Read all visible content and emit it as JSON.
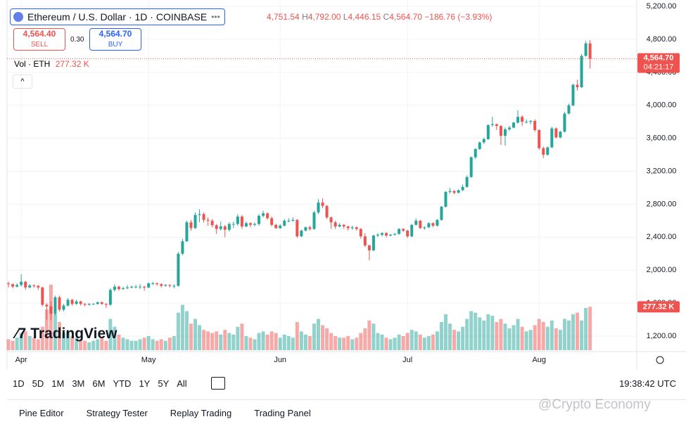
{
  "ui": {
    "symbol": "Ethereum / U.S. Dollar · 1D · COINBASE",
    "ohlc": {
      "open": "4,751.54",
      "high_label": "H",
      "high": "4,792.00",
      "low_label": "L",
      "low": "4,446.15",
      "close_label": "C",
      "close": "4,564.70",
      "change": "−186.76 (−3.93%)"
    },
    "sell_price": "4,564.40",
    "sell": "SELL",
    "spread": "0.30",
    "buy_price": "4,564.70",
    "buy": "BUY",
    "watermark": "TradingView",
    "ranges": [
      "1D",
      "5D",
      "1M",
      "3M",
      "6M",
      "YTD",
      "1Y",
      "5Y",
      "All"
    ],
    "clock": "19:38:42 UTC",
    "tabs": [
      "Pine Editor",
      "Strategy Tester",
      "Replay Trading",
      "Trading Panel"
    ],
    "credit": "@Crypto Economy"
  },
  "chart_data": {
    "type": "candlestick",
    "up_color": "#26a69a",
    "down_color": "#ef5350",
    "grid": true,
    "ylim": [
      1012,
      5278
    ],
    "yticks": [
      {
        "value": 1200,
        "label": "1,200.00"
      },
      {
        "value": 1600,
        "label": "1,600.00"
      },
      {
        "value": 2000,
        "label": "2,000.00"
      },
      {
        "value": 2400,
        "label": "2,400.00"
      },
      {
        "value": 2800,
        "label": "2,800.00"
      },
      {
        "value": 3200,
        "label": "3,200.00"
      },
      {
        "value": 3600,
        "label": "3,600.00"
      },
      {
        "value": 4000,
        "label": "4,000.00"
      },
      {
        "value": 4400,
        "label": "4,400.00"
      },
      {
        "value": 4800,
        "label": "4,800.00"
      },
      {
        "value": 5200,
        "label": "5,200.00"
      }
    ],
    "xlim": [
      -2,
      148
    ],
    "xticks": [
      {
        "value": 3,
        "label": "Apr"
      },
      {
        "value": 33,
        "label": "May"
      },
      {
        "value": 64,
        "label": "Jun"
      },
      {
        "value": 94,
        "label": "Jul"
      },
      {
        "value": 125,
        "label": "Aug"
      }
    ],
    "last_price_label": "4,564.70",
    "countdown": "04:21:17",
    "volume_name": "Vol · ETH",
    "volume_last_label": "277.32 K",
    "volume_ylim": [
      0,
      450
    ],
    "candles": [
      [
        1840,
        1860,
        1790,
        1830
      ],
      [
        1830,
        1840,
        1780,
        1800
      ],
      [
        1800,
        1840,
        1790,
        1820
      ],
      [
        1820,
        1950,
        1800,
        1860
      ],
      [
        1860,
        1870,
        1760,
        1790
      ],
      [
        1790,
        1830,
        1780,
        1815
      ],
      [
        1815,
        1830,
        1790,
        1810
      ],
      [
        1810,
        1820,
        1760,
        1790
      ],
      [
        1790,
        1800,
        1560,
        1580
      ],
      [
        1580,
        1600,
        1400,
        1560
      ],
      [
        1560,
        1620,
        1390,
        1470
      ],
      [
        1470,
        1690,
        1450,
        1670
      ],
      [
        1670,
        1690,
        1500,
        1520
      ],
      [
        1520,
        1590,
        1500,
        1570
      ],
      [
        1570,
        1660,
        1560,
        1640
      ],
      [
        1640,
        1650,
        1570,
        1590
      ],
      [
        1590,
        1640,
        1580,
        1620
      ],
      [
        1620,
        1630,
        1570,
        1590
      ],
      [
        1590,
        1600,
        1560,
        1580
      ],
      [
        1580,
        1600,
        1570,
        1590
      ],
      [
        1590,
        1600,
        1580,
        1590
      ],
      [
        1590,
        1620,
        1580,
        1610
      ],
      [
        1610,
        1620,
        1580,
        1590
      ],
      [
        1590,
        1600,
        1540,
        1580
      ],
      [
        1580,
        1780,
        1570,
        1760
      ],
      [
        1760,
        1830,
        1740,
        1800
      ],
      [
        1800,
        1810,
        1750,
        1770
      ],
      [
        1770,
        1800,
        1760,
        1780
      ],
      [
        1780,
        1820,
        1770,
        1790
      ],
      [
        1790,
        1810,
        1780,
        1800
      ],
      [
        1800,
        1820,
        1780,
        1800
      ],
      [
        1800,
        1830,
        1770,
        1800
      ],
      [
        1800,
        1810,
        1750,
        1790
      ],
      [
        1790,
        1850,
        1780,
        1840
      ],
      [
        1840,
        1860,
        1820,
        1840
      ],
      [
        1840,
        1850,
        1810,
        1830
      ],
      [
        1830,
        1840,
        1790,
        1810
      ],
      [
        1810,
        1830,
        1800,
        1820
      ],
      [
        1820,
        1830,
        1790,
        1810
      ],
      [
        1810,
        1830,
        1780,
        1810
      ],
      [
        1810,
        2220,
        1800,
        2200
      ],
      [
        2200,
        2380,
        2180,
        2350
      ],
      [
        2350,
        2600,
        2340,
        2580
      ],
      [
        2580,
        2610,
        2480,
        2510
      ],
      [
        2510,
        2700,
        2500,
        2670
      ],
      [
        2670,
        2740,
        2580,
        2680
      ],
      [
        2680,
        2700,
        2580,
        2610
      ],
      [
        2610,
        2640,
        2540,
        2600
      ],
      [
        2600,
        2620,
        2520,
        2545
      ],
      [
        2545,
        2560,
        2440,
        2500
      ],
      [
        2500,
        2590,
        2480,
        2530
      ],
      [
        2530,
        2550,
        2400,
        2490
      ],
      [
        2490,
        2580,
        2470,
        2560
      ],
      [
        2560,
        2590,
        2510,
        2560
      ],
      [
        2560,
        2680,
        2540,
        2650
      ],
      [
        2650,
        2670,
        2500,
        2530
      ],
      [
        2530,
        2590,
        2520,
        2570
      ],
      [
        2570,
        2580,
        2520,
        2550
      ],
      [
        2550,
        2580,
        2530,
        2560
      ],
      [
        2560,
        2680,
        2540,
        2660
      ],
      [
        2660,
        2720,
        2640,
        2690
      ],
      [
        2690,
        2700,
        2610,
        2630
      ],
      [
        2630,
        2650,
        2530,
        2550
      ],
      [
        2550,
        2560,
        2500,
        2510
      ],
      [
        2510,
        2560,
        2500,
        2540
      ],
      [
        2540,
        2620,
        2530,
        2600
      ],
      [
        2600,
        2630,
        2580,
        2600
      ],
      [
        2600,
        2640,
        2590,
        2610
      ],
      [
        2610,
        2620,
        2390,
        2410
      ],
      [
        2410,
        2490,
        2400,
        2480
      ],
      [
        2480,
        2530,
        2470,
        2520
      ],
      [
        2520,
        2540,
        2480,
        2500
      ],
      [
        2500,
        2720,
        2490,
        2700
      ],
      [
        2700,
        2860,
        2680,
        2820
      ],
      [
        2820,
        2870,
        2750,
        2780
      ],
      [
        2780,
        2790,
        2620,
        2640
      ],
      [
        2640,
        2650,
        2500,
        2580
      ],
      [
        2580,
        2600,
        2500,
        2530
      ],
      [
        2530,
        2570,
        2520,
        2550
      ],
      [
        2550,
        2560,
        2500,
        2530
      ],
      [
        2530,
        2540,
        2480,
        2510
      ],
      [
        2510,
        2540,
        2490,
        2520
      ],
      [
        2520,
        2530,
        2480,
        2500
      ],
      [
        2500,
        2510,
        2380,
        2410
      ],
      [
        2410,
        2450,
        2280,
        2300
      ],
      [
        2300,
        2310,
        2120,
        2240
      ],
      [
        2240,
        2430,
        2230,
        2420
      ],
      [
        2420,
        2450,
        2400,
        2430
      ],
      [
        2430,
        2460,
        2410,
        2450
      ],
      [
        2450,
        2460,
        2400,
        2420
      ],
      [
        2420,
        2440,
        2410,
        2430
      ],
      [
        2430,
        2450,
        2420,
        2440
      ],
      [
        2440,
        2510,
        2430,
        2500
      ],
      [
        2500,
        2510,
        2460,
        2480
      ],
      [
        2480,
        2490,
        2390,
        2410
      ],
      [
        2410,
        2560,
        2400,
        2550
      ],
      [
        2550,
        2630,
        2540,
        2600
      ],
      [
        2600,
        2610,
        2500,
        2510
      ],
      [
        2510,
        2530,
        2490,
        2520
      ],
      [
        2520,
        2580,
        2510,
        2570
      ],
      [
        2570,
        2580,
        2520,
        2540
      ],
      [
        2540,
        2620,
        2530,
        2610
      ],
      [
        2610,
        2780,
        2600,
        2770
      ],
      [
        2770,
        2960,
        2760,
        2950
      ],
      [
        2950,
        3000,
        2930,
        2960
      ],
      [
        2960,
        2970,
        2920,
        2940
      ],
      [
        2940,
        2980,
        2930,
        2970
      ],
      [
        2970,
        3040,
        2960,
        3010
      ],
      [
        3010,
        3150,
        3000,
        3130
      ],
      [
        3130,
        3380,
        3120,
        3370
      ],
      [
        3370,
        3480,
        3350,
        3470
      ],
      [
        3470,
        3560,
        3460,
        3550
      ],
      [
        3550,
        3610,
        3530,
        3590
      ],
      [
        3590,
        3770,
        3580,
        3760
      ],
      [
        3760,
        3860,
        3740,
        3770
      ],
      [
        3770,
        3780,
        3700,
        3750
      ],
      [
        3750,
        3760,
        3520,
        3630
      ],
      [
        3630,
        3730,
        3510,
        3710
      ],
      [
        3710,
        3750,
        3690,
        3730
      ],
      [
        3730,
        3800,
        3720,
        3790
      ],
      [
        3790,
        3940,
        3780,
        3860
      ],
      [
        3860,
        3880,
        3750,
        3800
      ],
      [
        3800,
        3830,
        3780,
        3800
      ],
      [
        3800,
        3820,
        3770,
        3810
      ],
      [
        3810,
        3830,
        3680,
        3700
      ],
      [
        3700,
        3710,
        3460,
        3480
      ],
      [
        3480,
        3500,
        3360,
        3400
      ],
      [
        3400,
        3500,
        3390,
        3490
      ],
      [
        3490,
        3740,
        3480,
        3720
      ],
      [
        3720,
        3730,
        3600,
        3610
      ],
      [
        3610,
        3690,
        3600,
        3680
      ],
      [
        3680,
        3920,
        3670,
        3900
      ],
      [
        3900,
        4020,
        3890,
        4000
      ],
      [
        4000,
        4260,
        3990,
        4250
      ],
      [
        4250,
        4310,
        4180,
        4220
      ],
      [
        4220,
        4620,
        4210,
        4600
      ],
      [
        4600,
        4780,
        4590,
        4751.54
      ],
      [
        4751.54,
        4792,
        4446.15,
        4564.7
      ]
    ],
    "volume": [
      70,
      60,
      80,
      110,
      120,
      90,
      80,
      70,
      150,
      260,
      420,
      230,
      180,
      110,
      120,
      90,
      80,
      70,
      60,
      50,
      60,
      70,
      80,
      60,
      200,
      150,
      100,
      80,
      70,
      60,
      60,
      70,
      80,
      90,
      70,
      60,
      70,
      60,
      80,
      90,
      240,
      290,
      250,
      170,
      200,
      160,
      130,
      120,
      110,
      120,
      100,
      130,
      110,
      100,
      150,
      170,
      90,
      80,
      70,
      110,
      120,
      100,
      120,
      110,
      80,
      100,
      90,
      80,
      180,
      120,
      100,
      90,
      170,
      200,
      160,
      140,
      110,
      90,
      80,
      80,
      90,
      70,
      80,
      110,
      140,
      190,
      170,
      110,
      100,
      80,
      70,
      80,
      100,
      90,
      110,
      130,
      120,
      100,
      80,
      90,
      100,
      120,
      180,
      230,
      170,
      130,
      120,
      150,
      200,
      250,
      240,
      210,
      190,
      230,
      220,
      180,
      200,
      170,
      140,
      160,
      200,
      150,
      120,
      130,
      160,
      200,
      180,
      150,
      190,
      140,
      130,
      200,
      190,
      230,
      240,
      190,
      270,
      277.32
    ]
  }
}
